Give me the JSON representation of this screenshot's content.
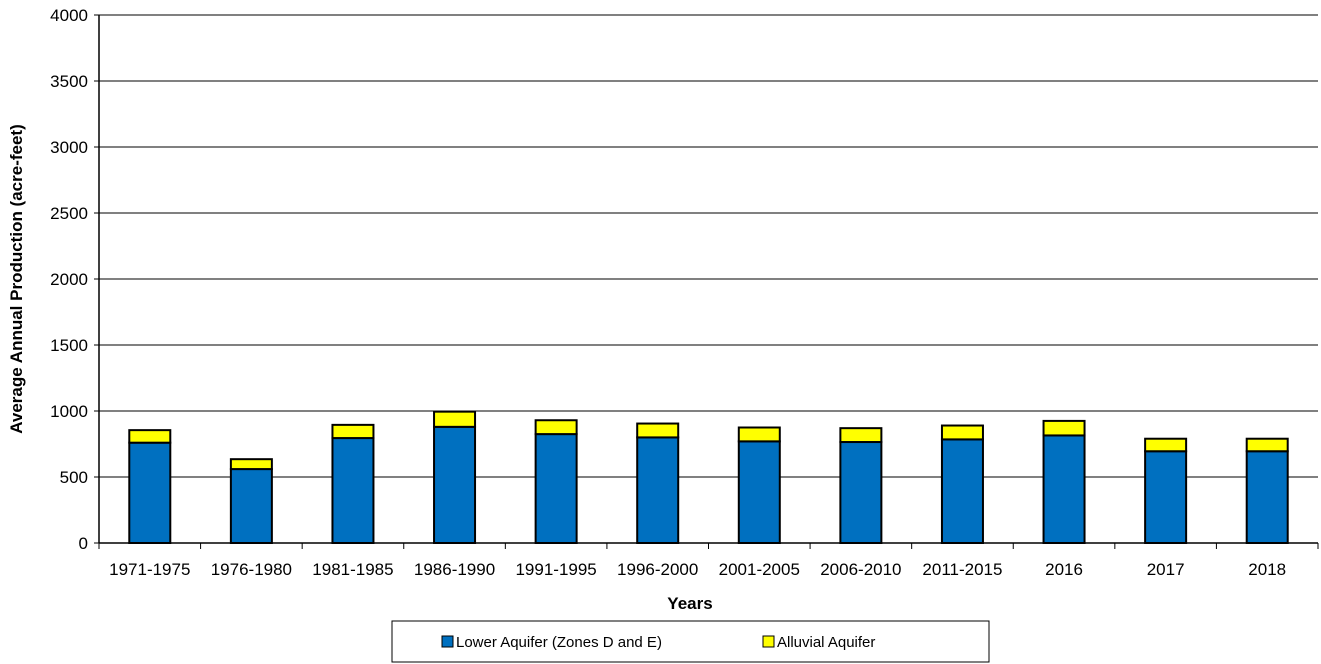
{
  "chart_data": {
    "type": "bar",
    "stacked": true,
    "title": "",
    "xlabel": "Years",
    "ylabel": "Average Annual Production (acre-feet)",
    "ylim": [
      0,
      4000
    ],
    "yticks": [
      0,
      500,
      1000,
      1500,
      2000,
      2500,
      3000,
      3500,
      4000
    ],
    "grid": true,
    "legend_position": "bottom",
    "categories": [
      "1971-1975",
      "1976-1980",
      "1981-1985",
      "1986-1990",
      "1991-1995",
      "1996-2000",
      "2001-2005",
      "2006-2010",
      "2011-2015",
      "2016",
      "2017",
      "2018"
    ],
    "series": [
      {
        "name": "Lower Aquifer (Zones D and E)",
        "color": "#0070C0",
        "values": [
          760,
          560,
          795,
          880,
          825,
          800,
          770,
          765,
          785,
          815,
          695,
          695
        ]
      },
      {
        "name": "Alluvial Aquifer",
        "color": "#FFFF00",
        "values": [
          95,
          75,
          100,
          115,
          105,
          105,
          105,
          105,
          105,
          110,
          95,
          95
        ]
      }
    ]
  }
}
